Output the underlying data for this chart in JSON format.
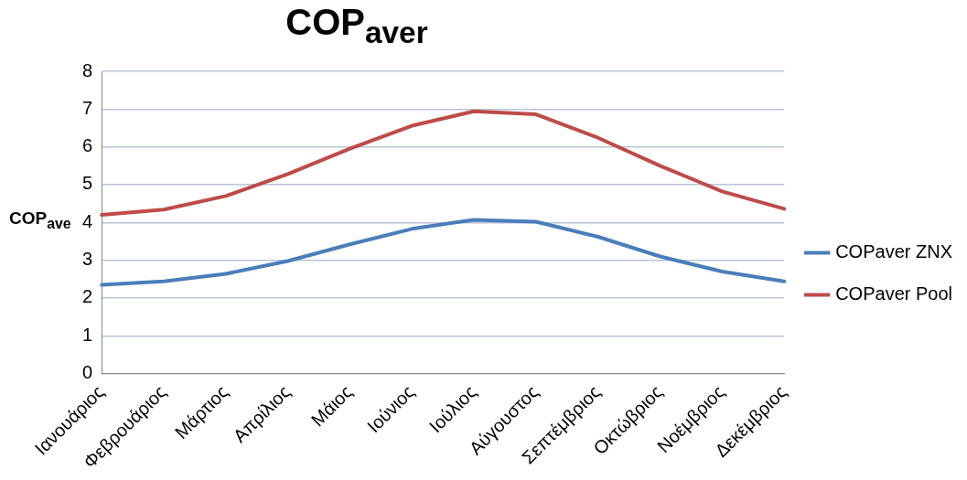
{
  "chart_data": {
    "type": "line",
    "title": "COP$_{aver}$",
    "ylabel": "COP$_{ave}$",
    "categories": [
      "Ιανουάριος",
      "Φεβρουάριος",
      "Μάρτιος",
      "Απρίλιος",
      "Μάιος",
      "Ιούνιος",
      "Ιούλιος",
      "Αύγουστος",
      "Σεπτέμβριος",
      "Οκτώβριος",
      "Νοέμβριος",
      "Δεκέμβριος"
    ],
    "series": [
      {
        "name": "COPaver ZNX",
        "color": "#4a7ebb",
        "values": [
          2.35,
          2.44,
          2.64,
          2.98,
          3.42,
          3.83,
          4.07,
          4.02,
          3.62,
          3.1,
          2.7,
          2.44
        ]
      },
      {
        "name": "COPaver Pool",
        "color": "#be4b48",
        "values": [
          4.2,
          4.34,
          4.7,
          5.28,
          5.95,
          6.56,
          6.94,
          6.86,
          6.24,
          5.5,
          4.82,
          4.36
        ]
      }
    ],
    "ylim": [
      0,
      8
    ],
    "yticks": [
      0,
      1,
      2,
      3,
      4,
      5,
      6,
      7,
      8
    ],
    "grid": "y",
    "legend": "right",
    "marker": "none",
    "line_style": "solid"
  }
}
